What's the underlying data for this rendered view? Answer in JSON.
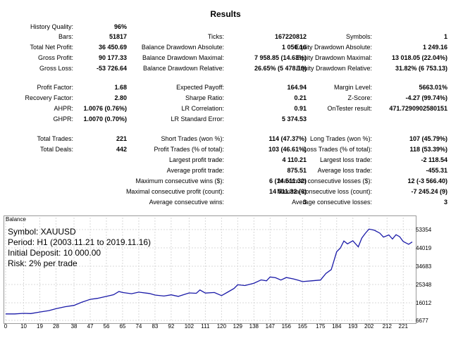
{
  "title": "Results",
  "stats": {
    "history_quality": {
      "label": "History Quality:",
      "value": "96%"
    },
    "bars": {
      "label": "Bars:",
      "value": "51817"
    },
    "ticks": {
      "label": "Ticks:",
      "value": "167220812"
    },
    "symbols": {
      "label": "Symbols:",
      "value": "1"
    },
    "total_net_profit": {
      "label": "Total Net Profit:",
      "value": "36 450.69"
    },
    "balance_dd_abs": {
      "label": "Balance Drawdown Absolute:",
      "value": "1 050.16"
    },
    "equity_dd_abs": {
      "label": "Equity Drawdown Absolute:",
      "value": "1 249.16"
    },
    "gross_profit": {
      "label": "Gross Profit:",
      "value": "90 177.33"
    },
    "balance_dd_max": {
      "label": "Balance Drawdown Maximal:",
      "value": "7 958.85 (14.63%)"
    },
    "equity_dd_max": {
      "label": "Equity Drawdown Maximal:",
      "value": "13 018.05 (22.04%)"
    },
    "gross_loss": {
      "label": "Gross Loss:",
      "value": "-53 726.64"
    },
    "balance_dd_rel": {
      "label": "Balance Drawdown Relative:",
      "value": "26.65% (5 478.19)"
    },
    "equity_dd_rel": {
      "label": "Equity Drawdown Relative:",
      "value": "31.82% (6 753.13)"
    },
    "profit_factor": {
      "label": "Profit Factor:",
      "value": "1.68"
    },
    "expected_payoff": {
      "label": "Expected Payoff:",
      "value": "164.94"
    },
    "margin_level": {
      "label": "Margin Level:",
      "value": "5663.01%"
    },
    "recovery_factor": {
      "label": "Recovery Factor:",
      "value": "2.80"
    },
    "sharpe_ratio": {
      "label": "Sharpe Ratio:",
      "value": "0.21"
    },
    "z_score": {
      "label": "Z-Score:",
      "value": "-4.27 (99.74%)"
    },
    "ahpr": {
      "label": "AHPR:",
      "value": "1.0076 (0.76%)"
    },
    "lr_correlation": {
      "label": "LR Correlation:",
      "value": "0.91"
    },
    "ontester_result": {
      "label": "OnTester result:",
      "value": "471.7290902580151"
    },
    "ghpr": {
      "label": "GHPR:",
      "value": "1.0070 (0.70%)"
    },
    "lr_std_error": {
      "label": "LR Standard Error:",
      "value": "5 374.53"
    },
    "total_trades": {
      "label": "Total Trades:",
      "value": "221"
    },
    "short_trades": {
      "label": "Short Trades (won %):",
      "value": "114 (47.37%)"
    },
    "long_trades": {
      "label": "Long Trades (won %):",
      "value": "107 (45.79%)"
    },
    "total_deals": {
      "label": "Total Deals:",
      "value": "442"
    },
    "profit_trades": {
      "label": "Profit Trades (% of total):",
      "value": "103 (46.61%)"
    },
    "loss_trades": {
      "label": "Loss Trades (% of total):",
      "value": "118 (53.39%)"
    },
    "largest_profit": {
      "label": "Largest profit trade:",
      "value": "4 110.21"
    },
    "largest_loss": {
      "label": "Largest loss trade:",
      "value": "-2 118.54"
    },
    "average_profit": {
      "label": "Average profit trade:",
      "value": "875.51"
    },
    "average_loss": {
      "label": "Average loss trade:",
      "value": "-455.31"
    },
    "max_consec_wins": {
      "label": "Maximum consecutive wins ($):",
      "value": "6 (14 511.32)"
    },
    "max_consec_losses": {
      "label": "Maximum consecutive losses ($):",
      "value": "12 (-3 566.40)"
    },
    "maximal_consec_profit": {
      "label": "Maximal consecutive profit (count):",
      "value": "14 511.32 (6)"
    },
    "maximal_consec_loss": {
      "label": "Maximal consecutive loss (count):",
      "value": "-7 245.24 (9)"
    },
    "avg_consec_wins": {
      "label": "Average consecutive wins:",
      "value": "3"
    },
    "avg_consec_losses": {
      "label": "Average consecutive losses:",
      "value": "3"
    }
  },
  "chart": {
    "caption": "Balance",
    "symbol_line": "Symbol: XAUUSD",
    "period_line": "Period: H1 (2003.11.21 to 2019.11.16)",
    "deposit_line": "Initial Deposit: 10 000.00",
    "risk_line": "Risk: 2% per trade",
    "line_color": "#1a1aa8"
  },
  "chart_data": {
    "type": "line",
    "title": "Balance",
    "xlabel": "",
    "ylabel": "",
    "x_ticks": [
      "0",
      "10",
      "19",
      "28",
      "38",
      "47",
      "56",
      "65",
      "74",
      "83",
      "92",
      "102",
      "111",
      "120",
      "129",
      "138",
      "147",
      "156",
      "165",
      "175",
      "184",
      "193",
      "202",
      "212",
      "221"
    ],
    "y_ticks": [
      "53354",
      "44019",
      "34683",
      "25348",
      "16012",
      "6677"
    ],
    "ylim": [
      6677,
      58000
    ],
    "xlim": [
      0,
      226
    ],
    "grid": true,
    "series": [
      {
        "x": [
          0,
          5,
          10,
          14,
          19,
          24,
          28,
          33,
          38,
          42,
          47,
          51,
          56,
          60,
          63,
          65,
          70,
          74,
          80,
          83,
          88,
          92,
          96,
          102,
          106,
          108,
          111,
          116,
          120,
          124,
          127,
          129,
          133,
          138,
          142,
          145,
          147,
          150,
          153,
          156,
          160,
          163,
          165,
          170,
          175,
          178,
          181,
          184,
          186,
          188,
          190,
          193,
          196,
          198,
          200,
          202,
          205,
          208,
          210,
          213,
          215,
          217,
          219,
          221,
          224,
          226
        ],
        "y": [
          10000,
          10000,
          10300,
          10200,
          11000,
          11700,
          12700,
          13700,
          14400,
          15900,
          17500,
          18000,
          19000,
          19900,
          21500,
          21000,
          20400,
          21200,
          20500,
          19700,
          19200,
          19800,
          19000,
          20800,
          20600,
          22300,
          20700,
          21000,
          19400,
          21500,
          23100,
          25000,
          24600,
          25800,
          27500,
          27000,
          29000,
          28600,
          27400,
          28700,
          28000,
          27200,
          26600,
          27000,
          27400,
          30800,
          32800,
          42000,
          43800,
          47500,
          46000,
          47600,
          44500,
          49000,
          51500,
          53600,
          53000,
          51500,
          49500,
          50600,
          48500,
          50700,
          49700,
          47200,
          45800,
          47000
        ]
      }
    ]
  }
}
